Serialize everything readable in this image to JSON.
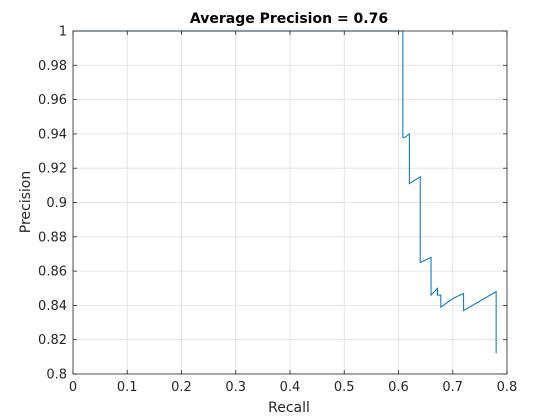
{
  "chart_data": {
    "type": "line",
    "title": "Average Precision = 0.76",
    "xlabel": "Recall",
    "ylabel": "Precision",
    "xlim": [
      0,
      0.8
    ],
    "ylim": [
      0.8,
      1
    ],
    "grid": true,
    "xticks": [
      "0",
      "0.1",
      "0.2",
      "0.3",
      "0.4",
      "0.5",
      "0.6",
      "0.7",
      "0.8"
    ],
    "yticks": [
      "0.8",
      "0.82",
      "0.84",
      "0.86",
      "0.88",
      "0.9",
      "0.92",
      "0.94",
      "0.96",
      "0.98",
      "1"
    ],
    "line_color": "#0072bd",
    "series": [
      {
        "x": [
          0,
          0.608,
          0.608,
          0.612,
          0.62,
          0.62,
          0.64,
          0.64,
          0.66,
          0.66,
          0.672,
          0.672,
          0.678,
          0.678,
          0.7,
          0.72,
          0.72,
          0.78,
          0.78
        ],
        "y": [
          1,
          1,
          0.938,
          0.938,
          0.94,
          0.911,
          0.915,
          0.865,
          0.868,
          0.846,
          0.85,
          0.846,
          0.846,
          0.839,
          0.844,
          0.847,
          0.837,
          0.848,
          0.812
        ]
      }
    ]
  }
}
